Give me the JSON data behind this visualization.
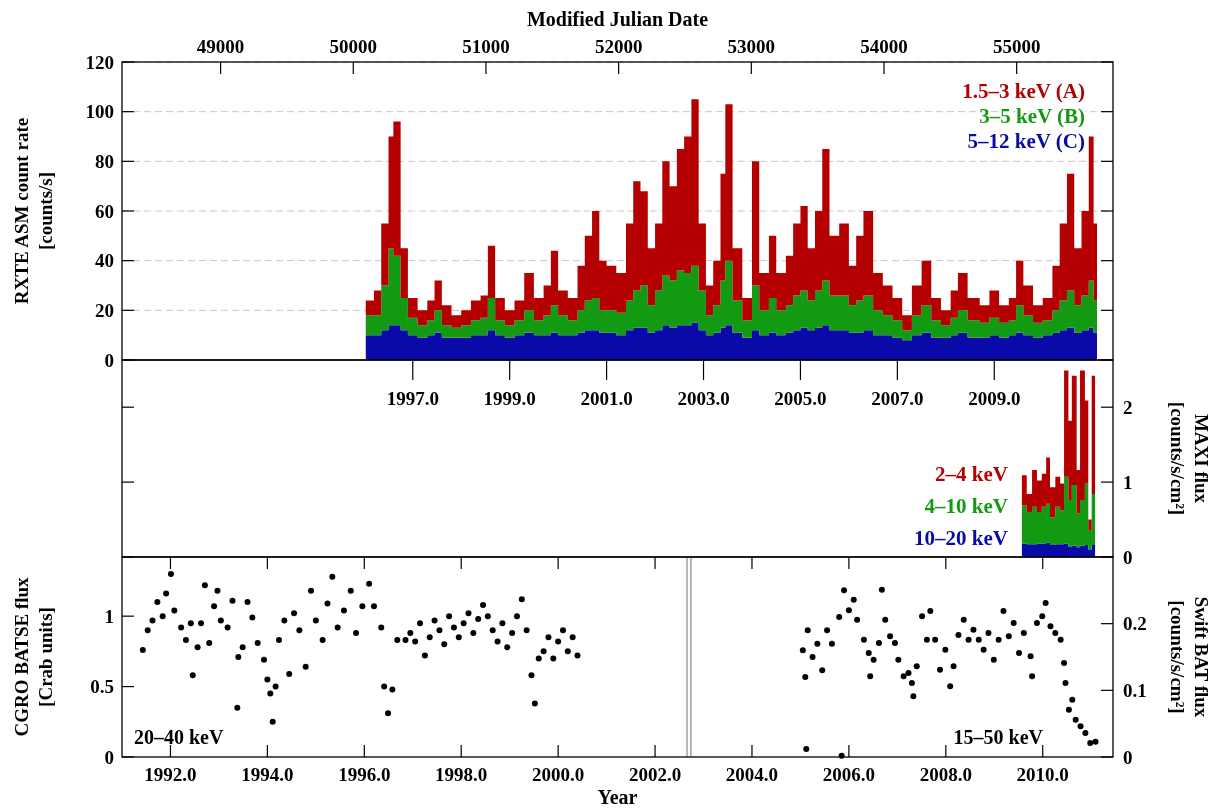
{
  "chart_data": [
    {
      "type": "area",
      "stacked": true,
      "xlim": [
        1991.0,
        2011.45
      ],
      "ylim": [
        0,
        120
      ],
      "yticks": [
        0,
        20,
        40,
        60,
        80,
        100,
        120
      ],
      "x2lim": [
        48257,
        55726
      ],
      "x2ticks": [
        49000,
        50000,
        51000,
        52000,
        53000,
        54000,
        55000
      ],
      "x2label": "Modified Julian Date",
      "ylabel": "RXTE ASM count rate [counts/s]",
      "grid": "y",
      "legend": "top right",
      "x": [
        1996.03,
        1996.2,
        1996.35,
        1996.5,
        1996.6,
        1996.75,
        1996.9,
        1997.1,
        1997.3,
        1997.45,
        1997.6,
        1997.8,
        1998.0,
        1998.2,
        1998.4,
        1998.55,
        1998.7,
        1998.9,
        1999.1,
        1999.3,
        1999.5,
        1999.7,
        1999.85,
        2000.0,
        2000.2,
        2000.4,
        2000.55,
        2000.7,
        2000.85,
        2001.0,
        2001.2,
        2001.4,
        2001.55,
        2001.7,
        2001.85,
        2002.0,
        2002.15,
        2002.3,
        2002.45,
        2002.6,
        2002.75,
        2002.9,
        2003.05,
        2003.2,
        2003.35,
        2003.45,
        2003.6,
        2003.8,
        2004.0,
        2004.15,
        2004.35,
        2004.5,
        2004.7,
        2004.85,
        2005.0,
        2005.15,
        2005.3,
        2005.45,
        2005.6,
        2005.8,
        2006.0,
        2006.15,
        2006.3,
        2006.5,
        2006.7,
        2006.9,
        2007.1,
        2007.3,
        2007.5,
        2007.7,
        2007.9,
        2008.1,
        2008.25,
        2008.45,
        2008.7,
        2008.9,
        2009.1,
        2009.3,
        2009.45,
        2009.6,
        2009.8,
        2010.0,
        2010.2,
        2010.35,
        2010.5,
        2010.65,
        2010.8,
        2010.95,
        2011.05,
        2011.12
      ],
      "series": [
        {
          "name": "5–12 keV (C)",
          "color": "#0a0aa8",
          "values": [
            10,
            10,
            12,
            14,
            14,
            12,
            10,
            9,
            10,
            11,
            9,
            9,
            9,
            10,
            10,
            12,
            10,
            9,
            10,
            11,
            10,
            10,
            11,
            10,
            10,
            11,
            12,
            12,
            11,
            11,
            10,
            12,
            13,
            13,
            11,
            12,
            14,
            13,
            14,
            14,
            15,
            12,
            10,
            11,
            13,
            14,
            11,
            9,
            12,
            10,
            11,
            10,
            11,
            12,
            13,
            12,
            13,
            14,
            12,
            12,
            11,
            11,
            12,
            10,
            10,
            9,
            8,
            10,
            11,
            9,
            9,
            10,
            11,
            9,
            9,
            10,
            9,
            10,
            11,
            10,
            9,
            10,
            11,
            12,
            13,
            11,
            12,
            13,
            11,
            10
          ]
        },
        {
          "name": "3–5 keV (B)",
          "color": "#139a13",
          "values": [
            8,
            8,
            18,
            31,
            28,
            13,
            7,
            5,
            6,
            9,
            5,
            4,
            5,
            6,
            7,
            13,
            6,
            5,
            6,
            9,
            6,
            8,
            11,
            8,
            6,
            9,
            12,
            13,
            9,
            9,
            9,
            12,
            15,
            17,
            11,
            16,
            20,
            19,
            22,
            21,
            23,
            16,
            8,
            11,
            19,
            26,
            13,
            7,
            18,
            10,
            14,
            10,
            11,
            14,
            15,
            12,
            15,
            18,
            14,
            14,
            11,
            13,
            14,
            10,
            8,
            7,
            4,
            8,
            11,
            7,
            5,
            7,
            9,
            7,
            6,
            7,
            6,
            6,
            11,
            8,
            6,
            6,
            9,
            12,
            15,
            11,
            14,
            19,
            13,
            12
          ]
        },
        {
          "name": "1.5–3 keV (A)",
          "color": "#b40000",
          "values": [
            6,
            10,
            25,
            45,
            54,
            20,
            8,
            6,
            8,
            12,
            8,
            5,
            6,
            8,
            9,
            21,
            9,
            6,
            8,
            15,
            9,
            12,
            22,
            10,
            9,
            18,
            26,
            35,
            20,
            18,
            16,
            31,
            44,
            38,
            23,
            27,
            46,
            38,
            49,
            55,
            67,
            27,
            12,
            18,
            43,
            63,
            21,
            9,
            50,
            15,
            25,
            15,
            20,
            29,
            34,
            21,
            32,
            53,
            24,
            29,
            16,
            26,
            34,
            15,
            12,
            9,
            6,
            12,
            18,
            9,
            6,
            11,
            15,
            9,
            7,
            11,
            7,
            9,
            18,
            12,
            7,
            9,
            18,
            31,
            47,
            23,
            34,
            58,
            31,
            26
          ]
        }
      ]
    },
    {
      "type": "area",
      "stacked": true,
      "xlim": [
        1991.0,
        2011.45
      ],
      "xticks": [
        {
          "value": 1997,
          "label": "1997.0"
        },
        {
          "value": 1999,
          "label": "1999.0"
        },
        {
          "value": 2001,
          "label": "2001.0"
        },
        {
          "value": 2003,
          "label": "2003.0"
        },
        {
          "value": 2005,
          "label": "2005.0"
        },
        {
          "value": 2007,
          "label": "2007.0"
        },
        {
          "value": 2009,
          "label": "2009.0"
        }
      ],
      "y2lim": [
        0,
        2.63
      ],
      "y2ticks": [
        0,
        1,
        2
      ],
      "y2label": "MAXI flux [counts/s/cm²]",
      "legend": "bottom right",
      "x": [
        2009.57,
        2009.67,
        2009.78,
        2009.88,
        2009.98,
        2010.07,
        2010.15,
        2010.26,
        2010.36,
        2010.44,
        2010.53,
        2010.6,
        2010.7,
        2010.77,
        2010.87,
        2010.94,
        2011.01,
        2011.08
      ],
      "series": [
        {
          "name": "10–20 keV",
          "color": "#0a0aa8",
          "axis": "y2",
          "values": [
            0.18,
            0.17,
            0.17,
            0.18,
            0.18,
            0.19,
            0.16,
            0.17,
            0.17,
            0.18,
            0.14,
            0.15,
            0.13,
            0.15,
            0.16,
            0.1,
            0.16,
            0.12
          ]
        },
        {
          "name": "4–10 keV",
          "color": "#139a13",
          "axis": "y2",
          "values": [
            0.51,
            0.43,
            0.5,
            0.42,
            0.49,
            0.52,
            0.37,
            0.5,
            0.45,
            0.89,
            0.62,
            0.81,
            0.45,
            0.61,
            0.82,
            0.25,
            0.68,
            0.37
          ]
        },
        {
          "name": "2–4 keV",
          "color": "#b40000",
          "axis": "y2",
          "values": [
            0.4,
            0.24,
            0.49,
            0.42,
            0.44,
            0.62,
            0.4,
            0.4,
            0.36,
            1.42,
            1.06,
            1.46,
            0.58,
            1.73,
            1.11,
            0.15,
            1.58,
            0.18
          ]
        }
      ]
    },
    {
      "type": "scatter",
      "marker": "circle",
      "xlim": [
        1991.0,
        2011.45
      ],
      "xticks": [
        {
          "value": 1992,
          "label": "1992.0"
        },
        {
          "value": 1994,
          "label": "1994.0"
        },
        {
          "value": 1996,
          "label": "1996.0"
        },
        {
          "value": 1998,
          "label": "1998.0"
        },
        {
          "value": 2000,
          "label": "2000.0"
        },
        {
          "value": 2002,
          "label": "2002.0"
        },
        {
          "value": 2004,
          "label": "2004.0"
        },
        {
          "value": 2006,
          "label": "2006.0"
        },
        {
          "value": 2008,
          "label": "2008.0"
        },
        {
          "value": 2010,
          "label": "2010.0"
        }
      ],
      "xlabel": "Year",
      "ylim": [
        0,
        1.42
      ],
      "yticks": [
        0,
        0.5,
        1
      ],
      "ylabel": "CGRO BATSE flux [Crab units]",
      "y2lim": [
        0,
        0.3
      ],
      "y2ticks": [
        0,
        0.1,
        0.2
      ],
      "y2label": "Swift BAT flux [counts/s/cm²]",
      "annotations": [
        "20–40 keV",
        "15–50 keV"
      ],
      "ref_lines": [
        {
          "axis": "x",
          "value": 2002.66,
          "color": "#888888"
        },
        {
          "axis": "x",
          "value": 2002.74,
          "color": "#888888"
        }
      ],
      "series": [
        {
          "color": "#000000",
          "x": [
            1991.43,
            1991.53,
            1991.63,
            1991.73,
            1991.84,
            1991.91,
            1992.01,
            1992.08,
            1992.22,
            1992.32,
            1992.42,
            1992.46,
            1992.56,
            1992.63,
            1992.71,
            1992.8,
            1992.9,
            1992.97,
            1993.04,
            1993.18,
            1993.28,
            1993.38,
            1993.4,
            1993.49,
            1993.59,
            1993.69,
            1993.8,
            1993.93,
            1994.0,
            1994.06,
            1994.11,
            1994.17,
            1994.24,
            1994.35,
            1994.45,
            1994.55,
            1994.66,
            1994.79,
            1994.9,
            1995.0,
            1995.14,
            1995.24,
            1995.34,
            1995.45,
            1995.58,
            1995.72,
            1995.83,
            1995.96,
            1996.1,
            1996.2,
            1996.35,
            1996.41,
            1996.49,
            1996.58,
            1996.68,
            1996.85,
            1996.95,
            1997.05,
            1997.15,
            1997.25,
            1997.35,
            1997.45,
            1997.55,
            1997.65,
            1997.75,
            1997.85,
            1997.95,
            1998.05,
            1998.15,
            1998.25,
            1998.35,
            1998.45,
            1998.55,
            1998.65,
            1998.75,
            1998.85,
            1998.95,
            1999.05,
            1999.15,
            1999.25,
            1999.35,
            1999.45,
            1999.52,
            1999.6,
            1999.7,
            1999.8,
            1999.9,
            2000.0,
            2000.1,
            2000.2,
            2000.3,
            2000.4
          ],
          "values": [
            0.76,
            0.9,
            0.97,
            1.1,
            1.0,
            1.16,
            1.3,
            1.04,
            0.92,
            0.83,
            0.95,
            0.58,
            0.78,
            0.95,
            1.22,
            0.81,
            1.07,
            1.18,
            0.97,
            0.92,
            1.11,
            0.35,
            0.71,
            0.78,
            1.1,
            0.99,
            0.81,
            0.69,
            0.55,
            0.45,
            0.25,
            0.5,
            0.83,
            0.97,
            0.59,
            1.02,
            0.9,
            0.64,
            1.18,
            0.97,
            0.83,
            1.09,
            1.28,
            0.92,
            1.04,
            1.18,
            0.88,
            1.07,
            1.23,
            1.07,
            0.92,
            0.5,
            0.31,
            0.48,
            0.83,
            0.83,
            0.88,
            0.82,
            0.95,
            0.72,
            0.85,
            0.97,
            0.9,
            0.8,
            1.0,
            0.92,
            0.85,
            0.95,
            1.02,
            0.88,
            0.98,
            1.08,
            1.0,
            0.9,
            0.82,
            0.95,
            0.78,
            0.88,
            1.0,
            1.12,
            0.9,
            0.58,
            0.38,
            0.7,
            0.75,
            0.85,
            0.7,
            0.82,
            0.9,
            0.75,
            0.85,
            0.72
          ]
        },
        {
          "color": "#000000",
          "axis": "y2",
          "x": [
            2005.05,
            2005.1,
            2005.12,
            2005.15,
            2005.25,
            2005.35,
            2005.45,
            2005.55,
            2005.65,
            2005.8,
            2005.85,
            2005.9,
            2006.0,
            2006.1,
            2006.17,
            2006.31,
            2006.41,
            2006.44,
            2006.51,
            2006.62,
            2006.68,
            2006.75,
            2006.85,
            2006.95,
            2007.02,
            2007.13,
            2007.23,
            2007.3,
            2007.33,
            2007.4,
            2007.51,
            2007.61,
            2007.68,
            2007.78,
            2007.88,
            2007.99,
            2008.09,
            2008.16,
            2008.26,
            2008.37,
            2008.47,
            2008.57,
            2008.68,
            2008.78,
            2008.88,
            2008.99,
            2009.09,
            2009.19,
            2009.3,
            2009.4,
            2009.51,
            2009.61,
            2009.75,
            2009.78,
            2009.88,
            2009.99,
            2010.06,
            2010.16,
            2010.26,
            2010.37,
            2010.44,
            2010.47,
            2010.54,
            2010.61,
            2010.68,
            2010.78,
            2010.88,
            2010.98,
            2011.09
          ],
          "values": [
            0.16,
            0.12,
            0.012,
            0.19,
            0.15,
            0.17,
            0.13,
            0.19,
            0.17,
            0.21,
            0.002,
            0.25,
            0.22,
            0.236,
            0.206,
            0.176,
            0.156,
            0.121,
            0.146,
            0.171,
            0.251,
            0.206,
            0.181,
            0.171,
            0.146,
            0.121,
            0.126,
            0.111,
            0.091,
            0.136,
            0.211,
            0.176,
            0.219,
            0.176,
            0.131,
            0.161,
            0.106,
            0.136,
            0.183,
            0.206,
            0.176,
            0.191,
            0.176,
            0.161,
            0.186,
            0.146,
            0.176,
            0.219,
            0.181,
            0.201,
            0.156,
            0.186,
            0.151,
            0.121,
            0.201,
            0.211,
            0.231,
            0.196,
            0.186,
            0.176,
            0.141,
            0.111,
            0.071,
            0.086,
            0.056,
            0.046,
            0.036,
            0.021,
            0.023
          ]
        }
      ]
    }
  ]
}
